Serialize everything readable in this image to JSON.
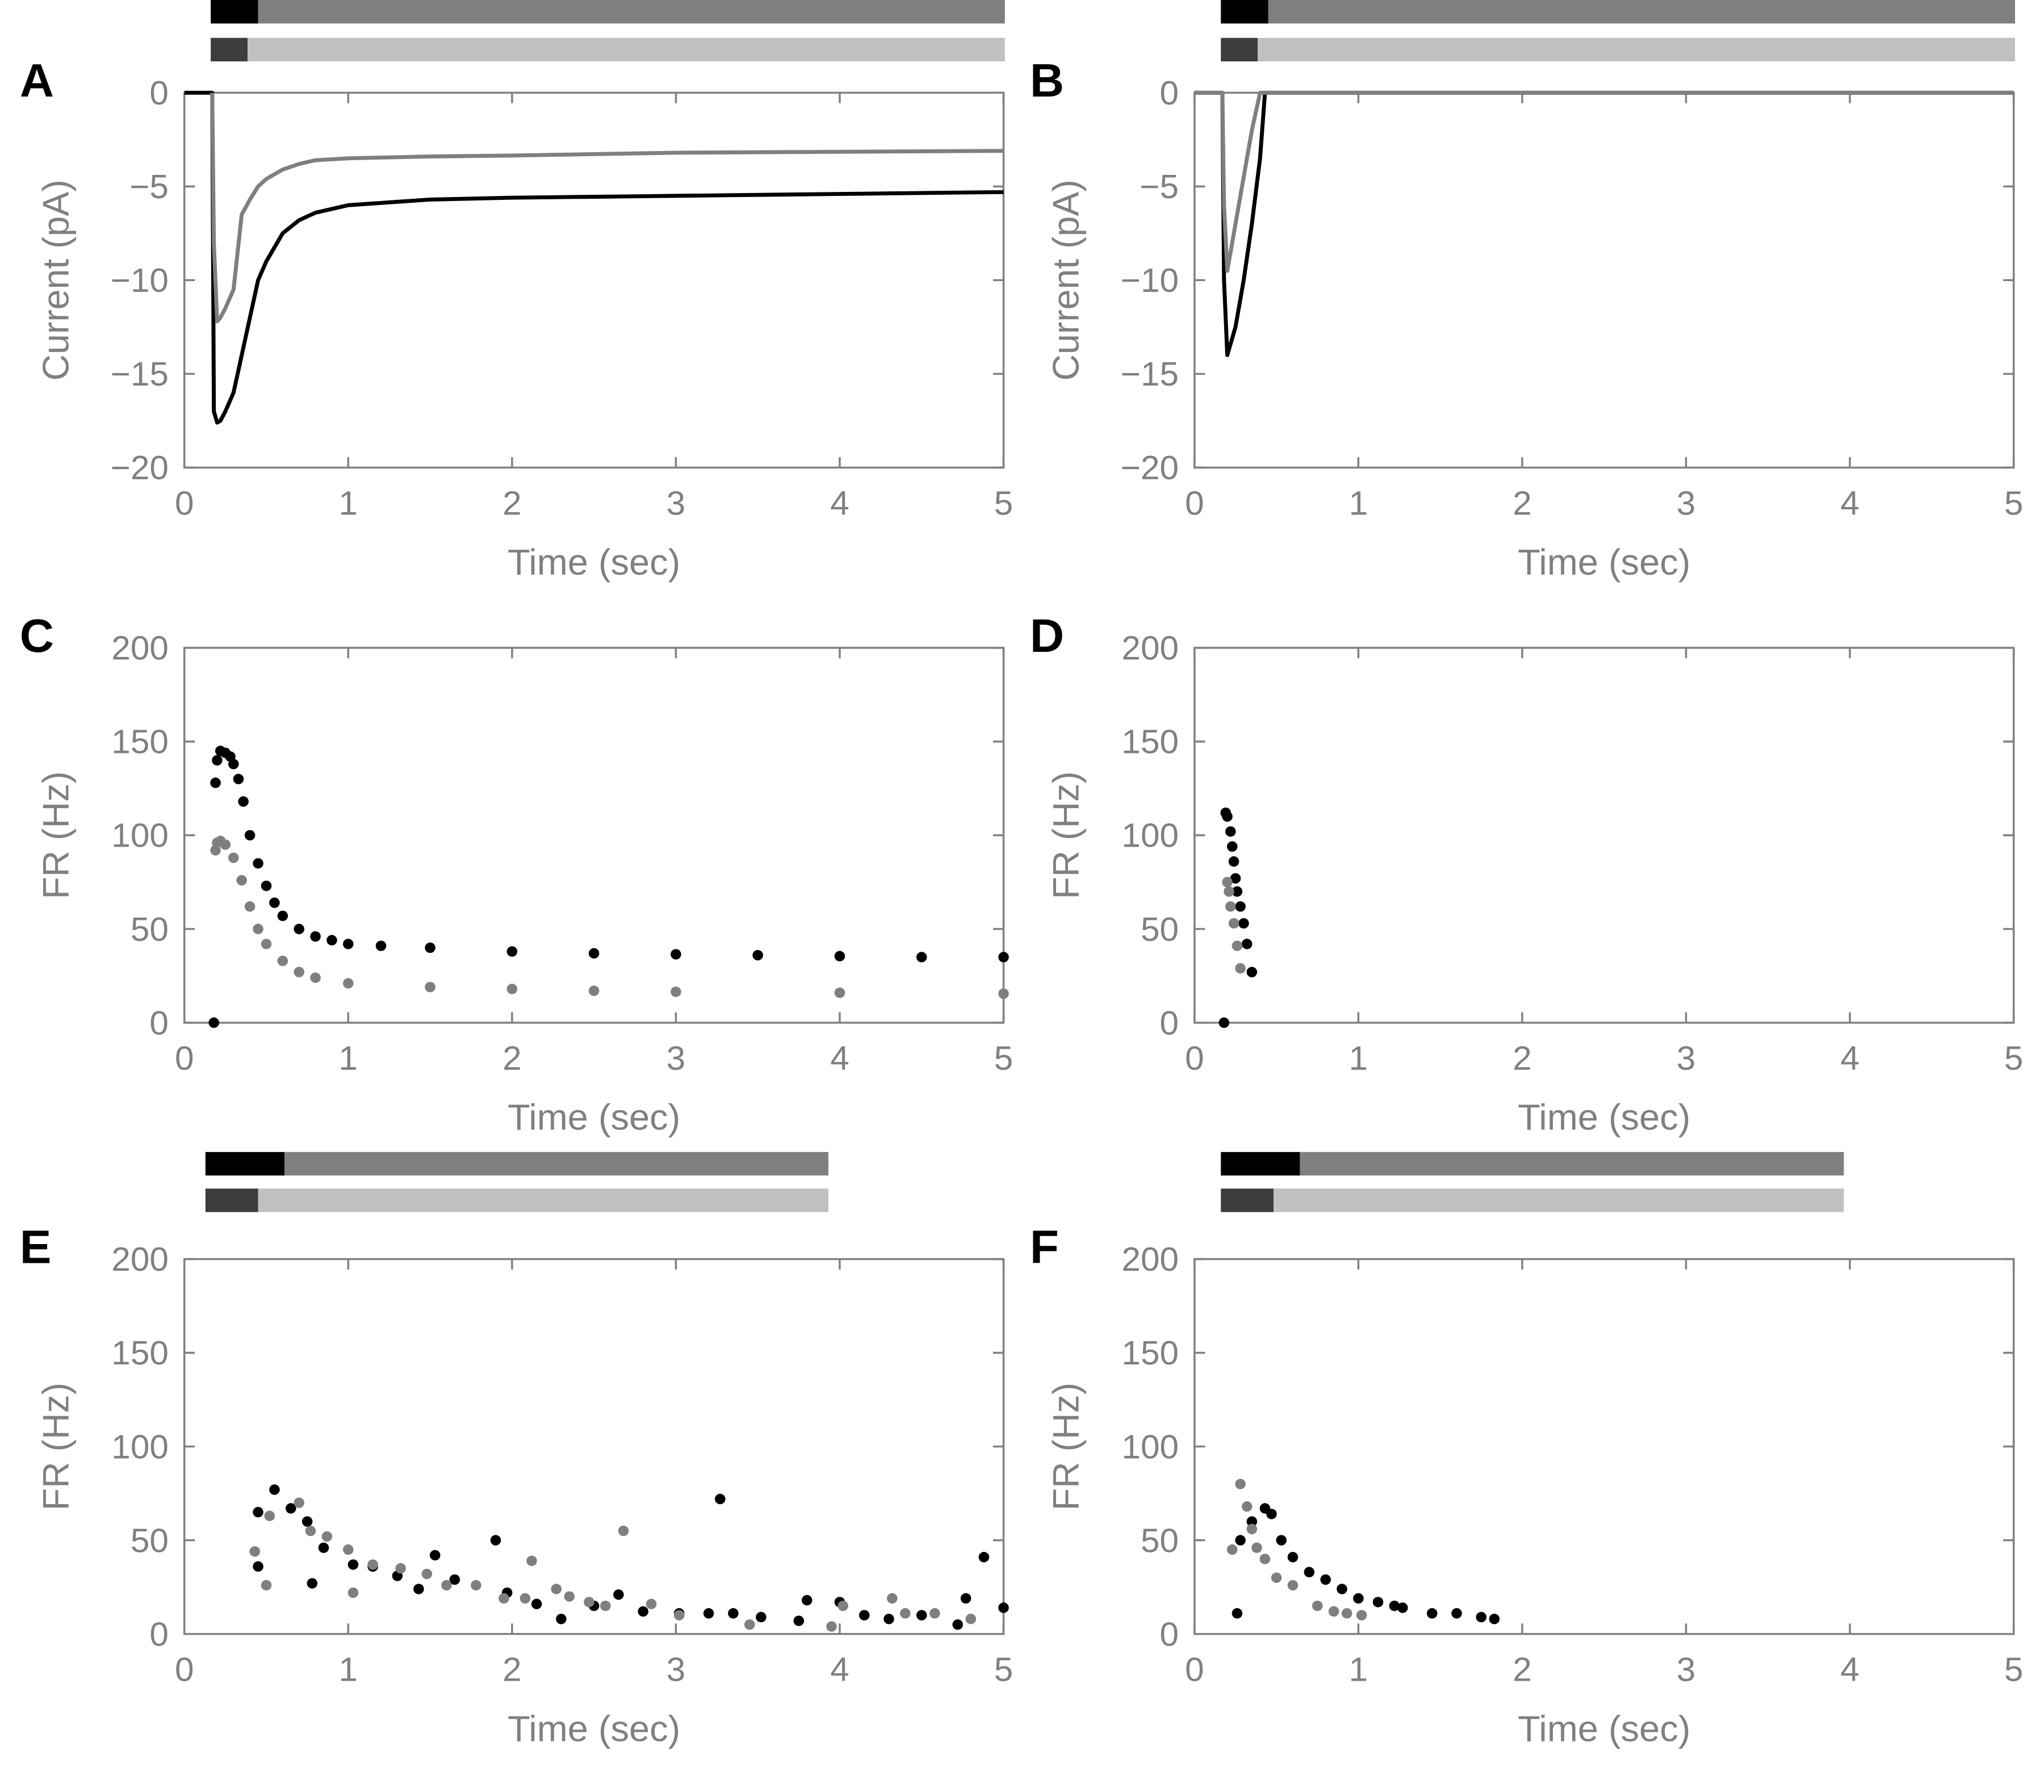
{
  "chart_data": [
    {
      "type": "line",
      "label": "A",
      "xlabel": "Time (sec)",
      "ylabel": "Current (pA)",
      "x": [
        0,
        0.17,
        0.18,
        0.2,
        0.22,
        0.25,
        0.3,
        0.35,
        0.4,
        0.45,
        0.5,
        0.6,
        0.7,
        0.8,
        1,
        1.5,
        2,
        3,
        4,
        5
      ],
      "series": [
        {
          "color": "#000000",
          "values": [
            0,
            0,
            -17,
            -17.6,
            -17.5,
            -17,
            -16,
            -14,
            -12,
            -10,
            -9,
            -7.5,
            -6.8,
            -6.4,
            -6,
            -5.7,
            -5.6,
            -5.5,
            -5.4,
            -5.3
          ]
        },
        {
          "color": "#7f7f7f",
          "values": [
            null,
            0,
            -8,
            -12.2,
            -12,
            -11.5,
            -10.5,
            -6.5,
            -5.7,
            -5,
            -4.6,
            -4.1,
            -3.8,
            -3.6,
            -3.5,
            -3.4,
            -3.35,
            -3.2,
            -3.15,
            -3.1
          ]
        }
      ],
      "xlim": [
        0,
        5
      ],
      "xticks": [
        0,
        1,
        2,
        3,
        4,
        5
      ],
      "ylim": [
        -20,
        0
      ],
      "yticks": [
        {
          "value": -20,
          "label": "−20"
        },
        {
          "value": -15,
          "label": "−15"
        },
        {
          "value": -10,
          "label": "−10"
        },
        {
          "value": -5,
          "label": "−5"
        },
        0
      ]
    },
    {
      "type": "line",
      "label": "B",
      "xlabel": "Time (sec)",
      "ylabel": "Current (pA)",
      "x": [
        0,
        0.17,
        0.18,
        0.2,
        0.25,
        0.3,
        0.35,
        0.4,
        0.43,
        0.45,
        1,
        5
      ],
      "series": [
        {
          "color": "#000000",
          "values": [
            0,
            0,
            -10,
            -14,
            -12.5,
            -10,
            -7,
            -3.5,
            0,
            0,
            0,
            0
          ]
        },
        {
          "color": "#7f7f7f",
          "values": [
            0,
            0,
            -6,
            -9.5,
            -7,
            -4.5,
            -2,
            0,
            0,
            0,
            0,
            0
          ]
        }
      ],
      "xlim": [
        0,
        5
      ],
      "xticks": [
        0,
        1,
        2,
        3,
        4,
        5
      ],
      "ylim": [
        -20,
        0
      ],
      "yticks": [
        {
          "value": -20,
          "label": "−20"
        },
        {
          "value": -15,
          "label": "−15"
        },
        {
          "value": -10,
          "label": "−10"
        },
        {
          "value": -5,
          "label": "−5"
        },
        0
      ]
    },
    {
      "type": "scatter",
      "label": "C",
      "xlabel": "Time (sec)",
      "ylabel": "FR (Hz)",
      "series": [
        {
          "color": "#000000",
          "x": [
            0.18,
            0.19,
            0.2,
            0.22,
            0.25,
            0.28,
            0.3,
            0.33,
            0.36,
            0.4,
            0.45,
            0.5,
            0.55,
            0.6,
            0.7,
            0.8,
            0.9,
            1,
            1.2,
            1.5,
            2,
            2.5,
            3,
            3.5,
            4,
            4.5,
            5
          ],
          "values": [
            0,
            128,
            140,
            145,
            144,
            142,
            138,
            130,
            118,
            100,
            85,
            73,
            64,
            57,
            50,
            46,
            44,
            42,
            41,
            40,
            38,
            37,
            36.5,
            36,
            35.5,
            35,
            35
          ]
        },
        {
          "color": "#7f7f7f",
          "x": [
            0.19,
            0.2,
            0.22,
            0.25,
            0.3,
            0.35,
            0.4,
            0.45,
            0.5,
            0.6,
            0.7,
            0.8,
            1,
            1.5,
            2,
            2.5,
            3,
            4,
            5
          ],
          "values": [
            92,
            96,
            97,
            95,
            88,
            76,
            62,
            50,
            42,
            33,
            27,
            24,
            21,
            19,
            18,
            17,
            16.5,
            16,
            15.5
          ]
        }
      ],
      "xlim": [
        0,
        5
      ],
      "xticks": [
        0,
        1,
        2,
        3,
        4,
        5
      ],
      "ylim": [
        0,
        200
      ],
      "yticks": [
        0,
        50,
        100,
        150,
        200
      ]
    },
    {
      "type": "scatter",
      "label": "D",
      "xlabel": "Time (sec)",
      "ylabel": "FR (Hz)",
      "series": [
        {
          "color": "#000000",
          "x": [
            0.18,
            0.19,
            0.2,
            0.22,
            0.23,
            0.24,
            0.25,
            0.26,
            0.28,
            0.3,
            0.32,
            0.35
          ],
          "values": [
            0,
            112,
            110,
            102,
            94,
            86,
            77,
            70,
            62,
            53,
            42,
            27
          ]
        },
        {
          "color": "#7f7f7f",
          "x": [
            0.2,
            0.21,
            0.22,
            0.24,
            0.26,
            0.28
          ],
          "values": [
            75,
            70,
            62,
            53,
            41,
            29
          ]
        }
      ],
      "xlim": [
        0,
        5
      ],
      "xticks": [
        0,
        1,
        2,
        3,
        4,
        5
      ],
      "ylim": [
        0,
        200
      ],
      "yticks": [
        0,
        50,
        100,
        150,
        200
      ]
    },
    {
      "type": "scatter",
      "label": "E",
      "xlabel": "Time (sec)",
      "ylabel": "FR (Hz)",
      "series": [
        {
          "color": "#000000",
          "x": [
            0.45,
            0.45,
            0.55,
            0.65,
            0.75,
            0.78,
            0.85,
            1.03,
            1.15,
            1.3,
            1.43,
            1.53,
            1.65,
            1.9,
            1.97,
            2.15,
            2.3,
            2.5,
            2.65,
            2.8,
            3.02,
            3.2,
            3.27,
            3.35,
            3.52,
            3.75,
            3.8,
            4,
            4.15,
            4.3,
            4.5,
            4.72,
            4.77,
            4.88,
            5
          ],
          "values": [
            65,
            36,
            77,
            67,
            60,
            27,
            46,
            37,
            36,
            31,
            24,
            42,
            29,
            50,
            22,
            16,
            8,
            15,
            21,
            12,
            11,
            11,
            72,
            11,
            9,
            7,
            18,
            17,
            10,
            8,
            10,
            5,
            19,
            41,
            14
          ]
        },
        {
          "color": "#7f7f7f",
          "x": [
            0.43,
            0.5,
            0.52,
            0.7,
            0.77,
            0.87,
            1,
            1.03,
            1.15,
            1.32,
            1.48,
            1.6,
            1.78,
            1.95,
            2.08,
            2.12,
            2.27,
            2.35,
            2.47,
            2.57,
            2.68,
            2.85,
            3.02,
            3.45,
            3.95,
            4.02,
            4.32,
            4.4,
            4.58,
            4.8
          ],
          "values": [
            44,
            26,
            63,
            70,
            55,
            52,
            45,
            22,
            37,
            35,
            32,
            26,
            26,
            19,
            19,
            39,
            24,
            20,
            17,
            15,
            55,
            16,
            10,
            5,
            4,
            15,
            19,
            11,
            11,
            8
          ]
        }
      ],
      "xlim": [
        0,
        5
      ],
      "xticks": [
        0,
        1,
        2,
        3,
        4,
        5
      ],
      "ylim": [
        0,
        200
      ],
      "yticks": [
        0,
        50,
        100,
        150,
        200
      ]
    },
    {
      "type": "scatter",
      "label": "F",
      "xlabel": "Time (sec)",
      "ylabel": "FR (Hz)",
      "series": [
        {
          "color": "#000000",
          "x": [
            0.26,
            0.28,
            0.35,
            0.43,
            0.47,
            0.53,
            0.6,
            0.7,
            0.8,
            0.9,
            1,
            1.12,
            1.22,
            1.27,
            1.45,
            1.6,
            1.75,
            1.83
          ],
          "values": [
            11,
            50,
            60,
            67,
            64,
            50,
            41,
            33,
            29,
            24,
            19,
            17,
            15,
            14,
            11,
            11,
            9,
            8
          ]
        },
        {
          "color": "#7f7f7f",
          "x": [
            0.23,
            0.28,
            0.32,
            0.35,
            0.38,
            0.43,
            0.5,
            0.6,
            0.75,
            0.85,
            0.93,
            1.02
          ],
          "values": [
            45,
            80,
            68,
            56,
            46,
            40,
            30,
            26,
            15,
            12,
            11,
            10
          ]
        }
      ],
      "xlim": [
        0,
        5
      ],
      "xticks": [
        0,
        1,
        2,
        3,
        4,
        5
      ],
      "ylim": [
        0,
        200
      ],
      "yticks": [
        0,
        50,
        100,
        150,
        200
      ]
    }
  ]
}
